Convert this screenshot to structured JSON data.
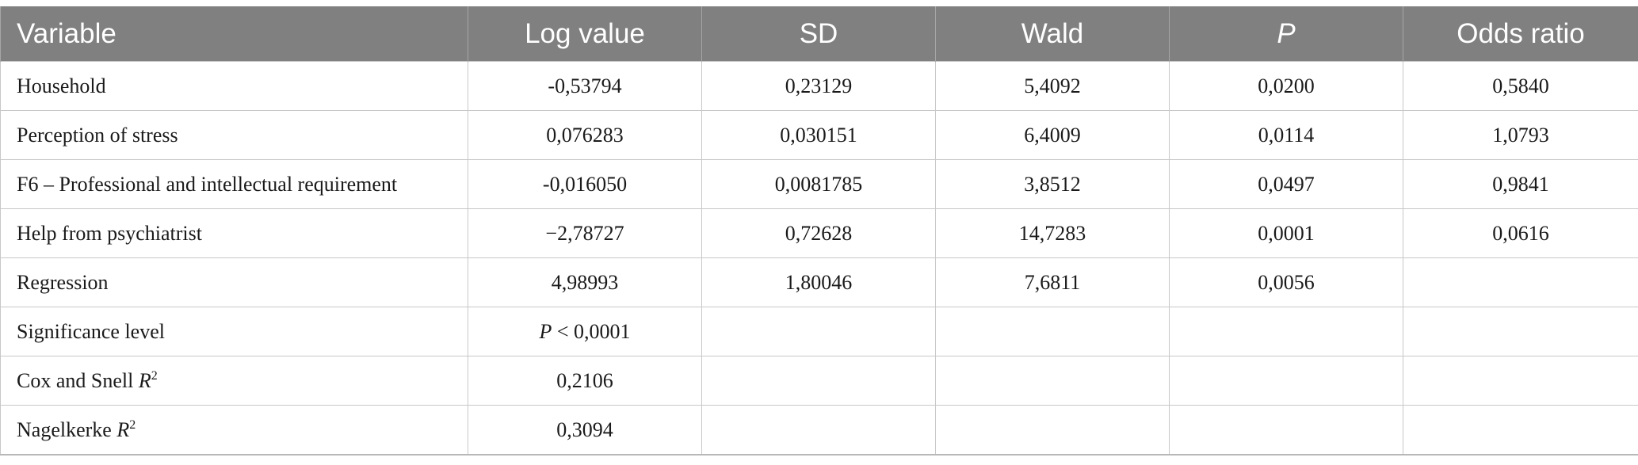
{
  "table": {
    "headers": [
      "Variable",
      "Log value",
      "SD",
      "Wald",
      "P",
      "Odds ratio"
    ],
    "rows": [
      {
        "variable": "Household",
        "log_value": "-0,53794",
        "sd": "0,23129",
        "wald": "5,4092",
        "p": "0,0200",
        "odds_ratio": "0,5840"
      },
      {
        "variable": "Perception of stress",
        "log_value": "0,076283",
        "sd": "0,030151",
        "wald": "6,4009",
        "p": "0,0114",
        "odds_ratio": "1,0793"
      },
      {
        "variable": "F6 – Professional and intellectual requirement",
        "log_value": "-0,016050",
        "sd": "0,0081785",
        "wald": "3,8512",
        "p": "0,0497",
        "odds_ratio": "0,9841"
      },
      {
        "variable": "Help from psychiatrist",
        "log_value": "−2,78727",
        "sd": "0,72628",
        "wald": "14,7283",
        "p": "0,0001",
        "odds_ratio": "0,0616"
      },
      {
        "variable": "Regression",
        "log_value": "4,98993",
        "sd": "1,80046",
        "wald": "7,6811",
        "p": "0,0056",
        "odds_ratio": ""
      },
      {
        "variable": "Significance level",
        "log_value_prefix": "P",
        "log_value_rest": " < 0,0001",
        "sd": "",
        "wald": "",
        "p": "",
        "odds_ratio": ""
      },
      {
        "variable_prefix": "Cox and Snell ",
        "variable_italic": "R",
        "variable_sup": "2",
        "log_value": "0,2106",
        "sd": "",
        "wald": "",
        "p": "",
        "odds_ratio": ""
      },
      {
        "variable_prefix": "Nagelkerke ",
        "variable_italic": "R",
        "variable_sup": "2",
        "log_value": "0,3094",
        "sd": "",
        "wald": "",
        "p": "",
        "odds_ratio": ""
      }
    ]
  }
}
